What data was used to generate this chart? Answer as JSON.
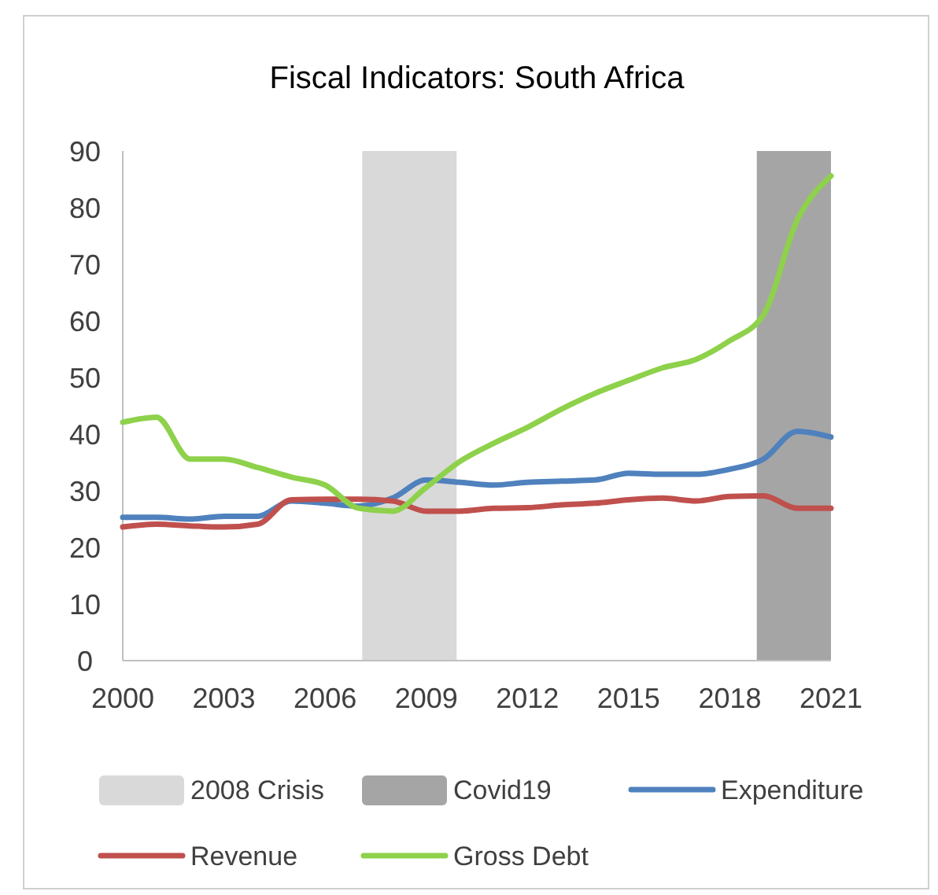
{
  "chart_data": {
    "type": "line",
    "title": "Fiscal Indicators: South Africa",
    "x": [
      2000,
      2001,
      2002,
      2003,
      2004,
      2005,
      2006,
      2007,
      2008,
      2009,
      2010,
      2011,
      2012,
      2013,
      2014,
      2015,
      2016,
      2017,
      2018,
      2019,
      2020,
      2021
    ],
    "xlim": [
      2000,
      2021
    ],
    "xticks": [
      2000,
      2003,
      2006,
      2009,
      2012,
      2015,
      2018,
      2021
    ],
    "ylim": [
      0,
      90
    ],
    "yticks": [
      0,
      10,
      20,
      30,
      40,
      50,
      60,
      70,
      80,
      90
    ],
    "series": [
      {
        "name": "Expenditure",
        "color": "#4f81bd",
        "values": [
          25.3,
          25.3,
          25.0,
          25.5,
          25.5,
          28.2,
          27.8,
          27.3,
          28.7,
          31.9,
          31.5,
          31.0,
          31.5,
          31.7,
          31.9,
          33.1,
          32.9,
          32.9,
          33.8,
          35.6,
          40.5,
          39.5
        ]
      },
      {
        "name": "Revenue",
        "color": "#c0504d",
        "values": [
          23.6,
          24.1,
          23.8,
          23.6,
          24.1,
          28.4,
          28.5,
          28.5,
          28.2,
          26.4,
          26.4,
          26.9,
          27.0,
          27.5,
          27.8,
          28.4,
          28.7,
          28.2,
          29.0,
          29.1,
          26.9,
          26.9
        ]
      },
      {
        "name": "Gross Debt",
        "color": "#8ed14b",
        "values": [
          42.1,
          43.0,
          35.6,
          35.6,
          34.1,
          32.4,
          31.0,
          26.9,
          26.4,
          30.6,
          35.2,
          38.4,
          41.2,
          44.4,
          47.2,
          49.5,
          51.7,
          53.2,
          56.5,
          61.1,
          77.8,
          85.6
        ]
      }
    ],
    "bands": [
      {
        "axis": "x",
        "from": 2007.1,
        "to": 2009.9,
        "label": "2008 Crisis",
        "color": "#d9d9d9"
      },
      {
        "axis": "x",
        "from": 2018.8,
        "to": 2021,
        "label": "Covid19",
        "color": "#a5a5a5"
      }
    ],
    "legend": "bottom",
    "grid": false,
    "marker": "none",
    "line_style": "solid"
  }
}
